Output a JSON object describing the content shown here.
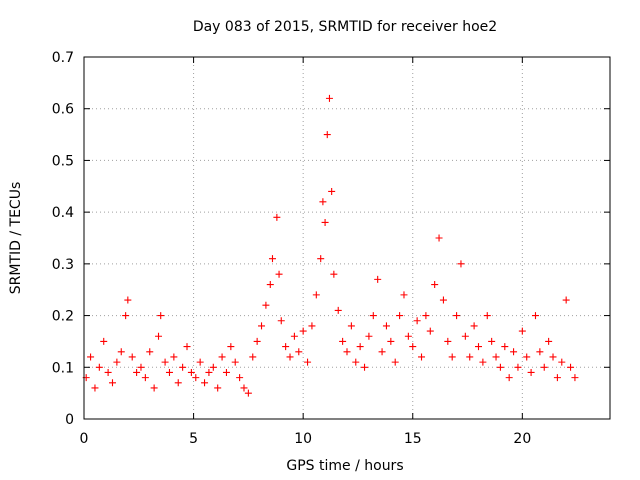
{
  "chart_data": {
    "type": "scatter",
    "title": "Day 083 of 2015, SRMTID for receiver hoe2",
    "xlabel": "GPS time / hours",
    "ylabel": "SRMTID / TECUs",
    "xlim": [
      0,
      24
    ],
    "ylim": [
      0,
      0.7
    ],
    "x_ticks": [
      0,
      5,
      10,
      15,
      20
    ],
    "y_ticks": [
      0,
      0.1,
      0.2,
      0.3,
      0.4,
      0.5,
      0.6,
      0.7
    ],
    "grid": true,
    "marker": "+",
    "series": [
      {
        "name": "SRMTID",
        "color": "#ff0000",
        "x": [
          0.1,
          0.3,
          0.5,
          0.7,
          0.9,
          1.1,
          1.3,
          1.5,
          1.7,
          1.9,
          2.0,
          2.2,
          2.4,
          2.6,
          2.8,
          3.0,
          3.2,
          3.4,
          3.5,
          3.7,
          3.9,
          4.1,
          4.3,
          4.5,
          4.7,
          4.9,
          5.1,
          5.3,
          5.5,
          5.7,
          5.9,
          6.1,
          6.3,
          6.5,
          6.7,
          6.9,
          7.1,
          7.3,
          7.5,
          7.7,
          7.9,
          8.1,
          8.3,
          8.5,
          8.6,
          8.8,
          8.9,
          9.0,
          9.2,
          9.4,
          9.6,
          9.8,
          10.0,
          10.2,
          10.4,
          10.6,
          10.8,
          10.9,
          11.0,
          11.1,
          11.2,
          11.3,
          11.4,
          11.6,
          11.8,
          12.0,
          12.2,
          12.4,
          12.6,
          12.8,
          13.0,
          13.2,
          13.4,
          13.6,
          13.8,
          14.0,
          14.2,
          14.4,
          14.6,
          14.8,
          15.0,
          15.2,
          15.4,
          15.6,
          15.8,
          16.0,
          16.2,
          16.4,
          16.6,
          16.8,
          17.0,
          17.2,
          17.4,
          17.6,
          17.8,
          18.0,
          18.2,
          18.4,
          18.6,
          18.8,
          19.0,
          19.2,
          19.4,
          19.6,
          19.8,
          20.0,
          20.2,
          20.4,
          20.6,
          20.8,
          21.0,
          21.2,
          21.4,
          21.6,
          21.8,
          22.0,
          22.2,
          22.4
        ],
        "y": [
          0.08,
          0.12,
          0.06,
          0.1,
          0.15,
          0.09,
          0.07,
          0.11,
          0.13,
          0.2,
          0.23,
          0.12,
          0.09,
          0.1,
          0.08,
          0.13,
          0.06,
          0.16,
          0.2,
          0.11,
          0.09,
          0.12,
          0.07,
          0.1,
          0.14,
          0.09,
          0.08,
          0.11,
          0.07,
          0.09,
          0.1,
          0.06,
          0.12,
          0.09,
          0.14,
          0.11,
          0.08,
          0.06,
          0.05,
          0.12,
          0.15,
          0.18,
          0.22,
          0.26,
          0.31,
          0.39,
          0.28,
          0.19,
          0.14,
          0.12,
          0.16,
          0.13,
          0.17,
          0.11,
          0.18,
          0.24,
          0.31,
          0.42,
          0.38,
          0.55,
          0.62,
          0.44,
          0.28,
          0.21,
          0.15,
          0.13,
          0.18,
          0.11,
          0.14,
          0.1,
          0.16,
          0.2,
          0.27,
          0.13,
          0.18,
          0.15,
          0.11,
          0.2,
          0.24,
          0.16,
          0.14,
          0.19,
          0.12,
          0.2,
          0.17,
          0.26,
          0.35,
          0.23,
          0.15,
          0.12,
          0.2,
          0.3,
          0.16,
          0.12,
          0.18,
          0.14,
          0.11,
          0.2,
          0.15,
          0.12,
          0.1,
          0.14,
          0.08,
          0.13,
          0.1,
          0.17,
          0.12,
          0.09,
          0.2,
          0.13,
          0.1,
          0.15,
          0.12,
          0.08,
          0.11,
          0.23,
          0.1,
          0.08
        ]
      }
    ]
  }
}
